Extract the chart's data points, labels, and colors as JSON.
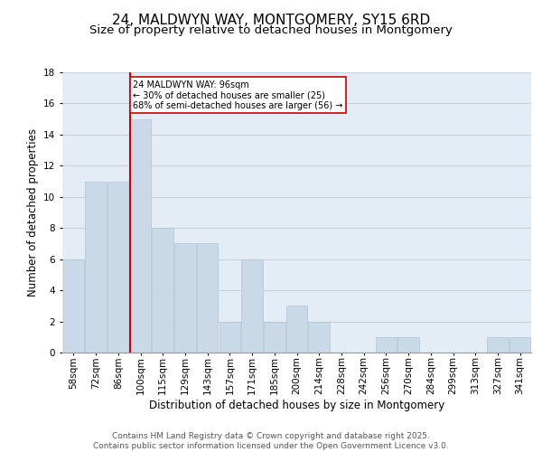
{
  "title1": "24, MALDWYN WAY, MONTGOMERY, SY15 6RD",
  "title2": "Size of property relative to detached houses in Montgomery",
  "xlabel": "Distribution of detached houses by size in Montgomery",
  "ylabel": "Number of detached properties",
  "categories": [
    "58sqm",
    "72sqm",
    "86sqm",
    "100sqm",
    "115sqm",
    "129sqm",
    "143sqm",
    "157sqm",
    "171sqm",
    "185sqm",
    "200sqm",
    "214sqm",
    "228sqm",
    "242sqm",
    "256sqm",
    "270sqm",
    "284sqm",
    "299sqm",
    "313sqm",
    "327sqm",
    "341sqm"
  ],
  "values": [
    6,
    11,
    11,
    15,
    8,
    7,
    7,
    2,
    6,
    2,
    3,
    2,
    0,
    0,
    1,
    1,
    0,
    0,
    0,
    1,
    1
  ],
  "bar_color": "#c9d9e8",
  "bar_edge_color": "#b0c4d8",
  "red_line_index": 3,
  "annotation_text": "24 MALDWYN WAY: 96sqm\n← 30% of detached houses are smaller (25)\n68% of semi-detached houses are larger (56) →",
  "annotation_box_color": "#ffffff",
  "annotation_box_edge": "#cc0000",
  "red_line_color": "#cc0000",
  "ylim": [
    0,
    18
  ],
  "yticks": [
    0,
    2,
    4,
    6,
    8,
    10,
    12,
    14,
    16,
    18
  ],
  "grid_color": "#c8d0d8",
  "background_color": "#e4edf5",
  "footer_text": "Contains HM Land Registry data © Crown copyright and database right 2025.\nContains public sector information licensed under the Open Government Licence v3.0.",
  "title1_fontsize": 11,
  "title2_fontsize": 9.5,
  "xlabel_fontsize": 8.5,
  "ylabel_fontsize": 8.5,
  "tick_fontsize": 7.5,
  "footer_fontsize": 6.5
}
